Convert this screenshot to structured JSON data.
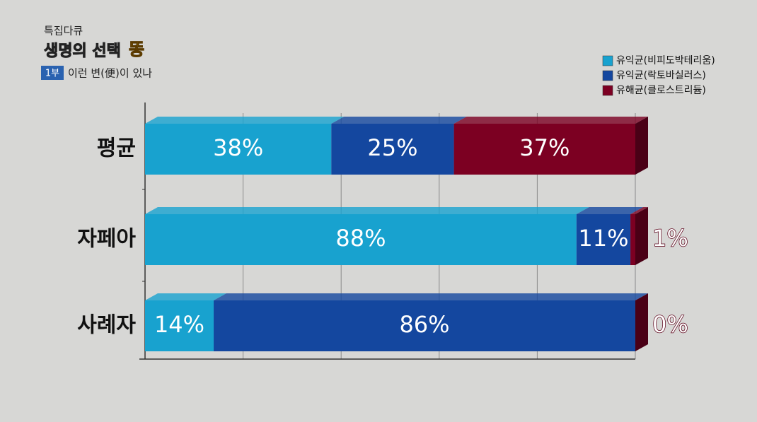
{
  "header": {
    "program": "특집다큐",
    "title": "생명의 선택",
    "title_accent": "똥",
    "episode": "1부",
    "episode_title": "이런 변(便)이 있나"
  },
  "chart_data": {
    "type": "stacked-bar-horizontal",
    "categories": [
      "평균",
      "자페아",
      "사례자"
    ],
    "series": [
      {
        "name": "유익균(비피도박테리움)",
        "color": "#18a2cf",
        "values": [
          38,
          88,
          14
        ],
        "value_labels": [
          "38%",
          "88%",
          "14%"
        ]
      },
      {
        "name": "유익균(락토바실러스)",
        "color": "#14479f",
        "values": [
          25,
          11,
          86
        ],
        "value_labels": [
          "25%",
          "11%",
          "86%"
        ]
      },
      {
        "name": "유해균(클로스트리듐)",
        "color": "#7c0022",
        "values": [
          37,
          1,
          0
        ],
        "value_labels": [
          "37%",
          "1%",
          "0%"
        ]
      }
    ],
    "xlim": [
      0,
      100
    ],
    "xticks": [
      0,
      20,
      40,
      60,
      80,
      100
    ],
    "grid": true,
    "legend": "top-right"
  }
}
